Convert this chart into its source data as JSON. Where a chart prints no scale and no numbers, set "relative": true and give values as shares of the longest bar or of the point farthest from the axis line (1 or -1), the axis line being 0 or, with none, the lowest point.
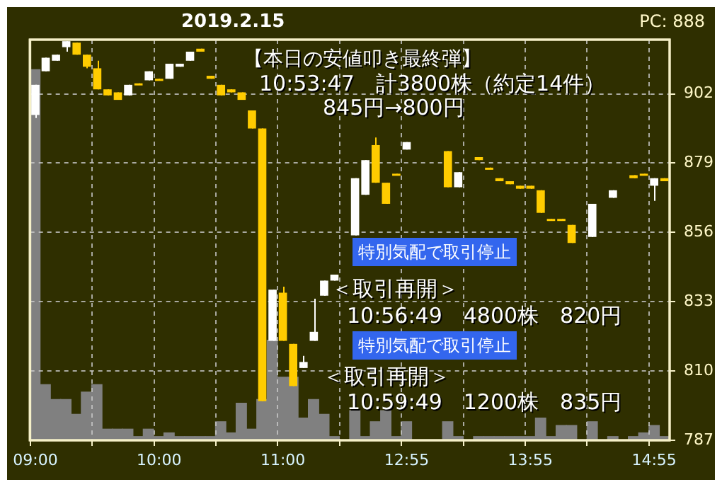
{
  "chart_data": [
    {
      "type": "candlestick",
      "title": "2019.2.15",
      "subtitle": "PC: 888",
      "annotations": [
        "【本日の安値叩き最終弾】",
        "10:53:47　計3800株（約定14件）",
        "845円→800円",
        "特別気配で取引停止",
        "＜取引再開＞",
        "10:56:49　4800株　820円",
        "特別気配で取引停止",
        "＜取引再開＞",
        "10:59:49　1200株　835円"
      ],
      "categories": [
        "09:00",
        null,
        null,
        null,
        null,
        null,
        null,
        null,
        null,
        null,
        null,
        null,
        "10:00",
        null,
        null,
        null,
        null,
        null,
        null,
        null,
        null,
        null,
        null,
        null,
        "11:00",
        null,
        null,
        null,
        null,
        null,
        null,
        null,
        null,
        null,
        null,
        null,
        "12:55",
        null,
        null,
        null,
        null,
        null,
        null,
        null,
        null,
        null,
        null,
        null,
        "13:55",
        null,
        null,
        null,
        null,
        null,
        null,
        null,
        null,
        null,
        null,
        null,
        "14:55",
        null
      ],
      "ohlc": [
        [
          895,
          905,
          894,
          905
        ],
        [
          909.5,
          914,
          909.5,
          914
        ],
        [
          913,
          915,
          913,
          915
        ],
        [
          917.5,
          919.5,
          916,
          919.5
        ],
        [
          919,
          919,
          915,
          915
        ],
        [
          915,
          915,
          910.5,
          911
        ],
        [
          910.5,
          913,
          903.5,
          903.5
        ],
        [
          903.5,
          903.5,
          901.5,
          901.5
        ],
        [
          902.5,
          902.5,
          900,
          900
        ],
        [
          901.5,
          905,
          901.5,
          905
        ],
        [
          905.5,
          905.5,
          905,
          905
        ],
        [
          906.5,
          909.5,
          906.5,
          909.5
        ],
        [
          907,
          907,
          906.5,
          906.5
        ],
        [
          907,
          912,
          907,
          912
        ],
        [
          911,
          912,
          911,
          912
        ],
        [
          913,
          916,
          913,
          916
        ],
        [
          917,
          917,
          916,
          916
        ],
        [
          908,
          908,
          907,
          907
        ],
        [
          905,
          905,
          901.5,
          901.5
        ],
        [
          903.5,
          903.5,
          902.5,
          902.5
        ],
        [
          902.5,
          902.5,
          900,
          900
        ],
        [
          896.5,
          896.5,
          890.5,
          890.5
        ],
        [
          890.5,
          890.5,
          800,
          800
        ],
        [
          820,
          837,
          820,
          837
        ],
        [
          836,
          838,
          820,
          820
        ],
        [
          819,
          819,
          805,
          805
        ],
        [
          811,
          815,
          811,
          813
        ],
        [
          820,
          834,
          820,
          823
        ],
        [
          835,
          840,
          835,
          840
        ],
        [
          840,
          842,
          840,
          842
        ],
        null,
        [
          855,
          874,
          855,
          874
        ],
        [
          868.5,
          880,
          868.5,
          880
        ],
        [
          885,
          887.5,
          872.5,
          872.5
        ],
        [
          872.5,
          872.5,
          865.5,
          865.5
        ],
        [
          875.5,
          875.5,
          875,
          875
        ],
        [
          883.5,
          886,
          883.5,
          886
        ],
        null,
        null,
        null,
        [
          883,
          883,
          871,
          871
        ],
        [
          871,
          876,
          871,
          876
        ],
        null,
        [
          881,
          881,
          880,
          880
        ],
        [
          877.5,
          877.5,
          877,
          877
        ],
        [
          874,
          874,
          873,
          873
        ],
        [
          873,
          873,
          872,
          872
        ],
        [
          871.5,
          871.5,
          870.5,
          870.5
        ],
        [
          871.5,
          871.5,
          870.5,
          870.5
        ],
        [
          870,
          870,
          862.5,
          862.5
        ],
        [
          860.5,
          860.5,
          860,
          860
        ],
        [
          860.5,
          860.5,
          860,
          860
        ],
        [
          858.5,
          858.5,
          852.5,
          852.5
        ],
        null,
        [
          854.5,
          865.5,
          854.5,
          865.5
        ],
        null,
        [
          867.5,
          870,
          867.5,
          870
        ],
        null,
        [
          875,
          875,
          874,
          874
        ],
        [
          875.5,
          875.5,
          875,
          875
        ],
        [
          871.5,
          874,
          866.5,
          874
        ],
        [
          874,
          874,
          873,
          873
        ]
      ],
      "colors": [
        "#ffffff",
        "#ffffff",
        "#ffffff",
        "#ffffff",
        "#ffcc00",
        "#ffcc00",
        "#ffcc00",
        "#ffcc00",
        "#ffcc00",
        "#ffffff",
        "#ffcc00",
        "#ffffff",
        "#ffcc00",
        "#ffffff",
        "#ffffff",
        "#ffffff",
        "#ffcc00",
        "#ffcc00",
        "#ffcc00",
        "#ffcc00",
        "#ffcc00",
        "#ffcc00",
        "#ffcc00",
        "#ffffff",
        "#ffcc00",
        "#ffcc00",
        "#ffffff",
        "#ffffff",
        "#ffffff",
        "#ffffff",
        null,
        "#ffffff",
        "#ffffff",
        "#ffcc00",
        "#ffcc00",
        "#ffcc00",
        "#ffffff",
        null,
        null,
        null,
        "#ffcc00",
        "#ffffff",
        null,
        "#ffcc00",
        "#ffcc00",
        "#ffcc00",
        "#ffcc00",
        "#ffcc00",
        "#ffcc00",
        "#ffcc00",
        "#ffcc00",
        "#ffcc00",
        "#ffcc00",
        null,
        "#ffffff",
        null,
        "#ffffff",
        null,
        "#ffcc00",
        "#ffcc00",
        "#ffffff",
        "#ffcc00"
      ],
      "ylim": [
        787,
        920
      ],
      "yticks": [
        787,
        810,
        833,
        856,
        879,
        902
      ],
      "grid": true
    },
    {
      "type": "bar",
      "relative": true,
      "color": "#808080",
      "tick_labels": false,
      "categories": [
        null,
        null,
        null,
        null,
        null,
        null,
        null,
        null,
        null,
        null,
        null,
        null,
        null,
        null,
        null,
        null,
        null,
        null,
        null,
        null,
        null,
        null,
        null,
        null,
        null,
        null,
        null,
        null,
        null,
        null,
        null,
        null,
        null,
        null,
        null,
        null,
        null,
        null,
        null,
        null,
        null,
        null,
        null,
        null,
        null,
        null,
        null,
        null,
        null,
        null,
        null,
        null,
        null,
        null,
        null,
        null,
        null,
        null,
        null,
        null,
        null,
        null
      ],
      "values": [
        1,
        0.15,
        0.11,
        0.11,
        0.07,
        0.13,
        0.15,
        0.03,
        0.03,
        0.03,
        0.01,
        0.03,
        0.01,
        0.02,
        0.01,
        0.01,
        0.01,
        0.01,
        0.05,
        0.02,
        0.1,
        0.03,
        0.11,
        0.27,
        0.17,
        0.17,
        0.06,
        0.11,
        0.07,
        0.01,
        null,
        0.08,
        0.01,
        0.05,
        0.08,
        0.01,
        0.05,
        null,
        null,
        null,
        0.05,
        0.01,
        null,
        0.01,
        0.01,
        0.01,
        0.01,
        0.01,
        0.01,
        0.06,
        0.01,
        0.04,
        0.04,
        null,
        0.05,
        null,
        0.01,
        null,
        0.01,
        0.02,
        0.04,
        0.01
      ]
    }
  ]
}
